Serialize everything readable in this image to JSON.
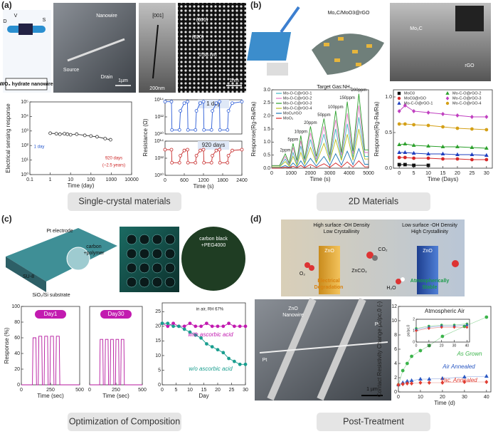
{
  "panels": [
    {
      "label": "(a)",
      "caption": "Single-crystal materials",
      "image_texts": [
        "D",
        "V",
        "S",
        "WO₃ hydrate nanowire",
        "Nanowire",
        "Source",
        "Drain",
        "1µm",
        "[001]",
        "200nm",
        "(001)",
        "(020)",
        "0.38 nm",
        "1nm"
      ]
    },
    {
      "label": "(b)",
      "caption": "2D Materials",
      "image_texts": [
        "Mo₂C/MoO3@rGO",
        "Mo₂C",
        "rGO",
        "Target Gas:NH₃"
      ]
    },
    {
      "label": "(c)",
      "caption": "Optimization of Composition",
      "image_texts": [
        "Pt electrode",
        "carbon",
        "+polymer",
        "SU-8",
        "SiO₂/Si substrate",
        "carbon black",
        "+PEG4000"
      ]
    },
    {
      "label": "(d)",
      "caption": "Post-Treatment",
      "image_texts": [
        "High surface -OH Density",
        "Low Crystallinity",
        "Low surface -OH Density",
        "High Crystallinity",
        "ZnO",
        "ZnO",
        "CO₂",
        "O₂",
        "H₂O",
        "ZnCO₃",
        "Electrical",
        "Degradation",
        "Atmospherically",
        "Stable",
        "ZnO",
        "Nanowire",
        "Pt",
        "Pt",
        "1 µm"
      ]
    }
  ],
  "chart_data": [
    {
      "type": "line",
      "xlog": true,
      "ylog": true,
      "xlabel": "Time (day)",
      "ylabel": "Electrical sensing response",
      "xlim": [
        0.1,
        10000
      ],
      "xticks": [
        0.1,
        1,
        10,
        100,
        1000,
        10000
      ],
      "ylim": [
        1,
        100000
      ],
      "yticks": [
        {
          "value": 1,
          "label": "10⁰"
        },
        {
          "value": 10,
          "label": "10¹"
        },
        {
          "value": 100,
          "label": "10²"
        },
        {
          "value": 1000,
          "label": "10³"
        },
        {
          "value": 10000,
          "label": "10⁴"
        },
        {
          "value": 100000,
          "label": "10⁵"
        }
      ],
      "x": [
        1,
        2,
        3,
        5,
        7,
        10,
        20,
        50,
        100,
        200,
        500,
        920
      ],
      "series": [
        {
          "color": "#333333",
          "marker": "circle",
          "open": true,
          "values": [
            700,
            650,
            600,
            650,
            600,
            550,
            600,
            500,
            450,
            400,
            300,
            250
          ]
        }
      ],
      "notes": [
        {
          "text": "1 day",
          "color": "#2255cc"
        },
        {
          "text": "920 days",
          "color": "#cc2222"
        },
        {
          "text": "(~2.5 years)",
          "color": "#cc2222"
        }
      ]
    },
    {
      "type": "line",
      "ylog": true,
      "ylabel": "Resistance (Ω)",
      "badge": "1 day",
      "xlim": [
        0,
        2400
      ],
      "ylim": [
        10000000000.0,
        100000000000000.0
      ],
      "yticks": [
        {
          "value": 10000000000.0,
          "label": "10¹⁰"
        },
        {
          "value": 1000000000000.0,
          "label": "10¹²"
        },
        {
          "value": 100000000000000.0,
          "label": "10¹⁴"
        }
      ],
      "x": [
        0,
        200,
        215,
        450,
        480,
        600,
        700,
        715,
        950,
        980,
        1100,
        1200,
        1215,
        1450,
        1480,
        1600,
        1700,
        1715,
        1950,
        1980,
        2100,
        2400
      ],
      "series": [
        {
          "color": "#2a5bd7",
          "marker": "circle",
          "open": true,
          "values": [
            60000000000000.0,
            60000000000000.0,
            30000000000.0,
            30000000000.0,
            5000000000000.0,
            40000000000000.0,
            60000000000000.0,
            30000000000.0,
            30000000000.0,
            5000000000000.0,
            40000000000000.0,
            60000000000000.0,
            30000000000.0,
            30000000000.0,
            5000000000000.0,
            40000000000000.0,
            60000000000000.0,
            30000000000.0,
            30000000000.0,
            5000000000000.0,
            40000000000000.0,
            60000000000000.0
          ]
        }
      ]
    },
    {
      "type": "line",
      "ylog": true,
      "xlabel": "Time (s)",
      "badge": "920 days",
      "xlim": [
        0,
        2400
      ],
      "xticks": [
        0,
        600,
        1200,
        1800,
        2400
      ],
      "ylim": [
        10000000000.0,
        100000000000000.0
      ],
      "yticks": [
        {
          "value": 10000000000.0,
          "label": "10¹⁰"
        },
        {
          "value": 1000000000000.0,
          "label": "10¹²"
        },
        {
          "value": 100000000000000.0,
          "label": "10¹⁴"
        }
      ],
      "x": [
        0,
        200,
        215,
        450,
        480,
        600,
        700,
        715,
        950,
        980,
        1100,
        1200,
        1215,
        1450,
        1480,
        1600,
        1700,
        1715,
        1950,
        1980,
        2100,
        2400
      ],
      "series": [
        {
          "color": "#c62828",
          "marker": "circle",
          "open": true,
          "values": [
            10000000000000.0,
            10000000000000.0,
            300000000000.0,
            300000000000.0,
            2000000000000.0,
            8000000000000.0,
            10000000000000.0,
            300000000000.0,
            300000000000.0,
            2000000000000.0,
            8000000000000.0,
            10000000000000.0,
            300000000000.0,
            300000000000.0,
            2000000000000.0,
            8000000000000.0,
            10000000000000.0,
            300000000000.0,
            300000000000.0,
            2000000000000.0,
            8000000000000.0,
            10000000000000.0
          ]
        }
      ]
    },
    {
      "type": "line",
      "xlabel": "Time (s)",
      "ylabel": "Response(Rg-Ra/Ra)",
      "xlim": [
        0,
        5000
      ],
      "xticks": [
        0,
        1000,
        2000,
        3000,
        4000,
        5000
      ],
      "ylim": [
        0,
        3
      ],
      "yticks": [
        {
          "value": 0,
          "label": "0.0"
        },
        0.5,
        {
          "value": 1,
          "label": "1.0"
        },
        1.5,
        {
          "value": 2,
          "label": "2.0"
        },
        2.5,
        {
          "value": 3,
          "label": "3.0"
        }
      ],
      "x": [
        0,
        400,
        700,
        900,
        1100,
        1300,
        1500,
        1700,
        2000,
        2300,
        2700,
        3000,
        3300,
        3600,
        3900,
        4200,
        4500,
        4800,
        5000
      ],
      "series": [
        {
          "name": "Mo-O-C@rGO-1",
          "color": "#41b6c4",
          "values": [
            0.05,
            0.05,
            0.35,
            0.1,
            0.6,
            0.15,
            0.85,
            0.2,
            1.1,
            0.25,
            1.3,
            0.3,
            1.5,
            0.35,
            1.7,
            0.4,
            1.95,
            0.45,
            0.45
          ]
        },
        {
          "name": "Mo-O-C@rGO-2",
          "color": "#e377c2",
          "values": [
            0.1,
            0.1,
            0.45,
            0.15,
            0.8,
            0.25,
            1.05,
            0.3,
            1.35,
            0.35,
            1.6,
            0.4,
            1.85,
            0.5,
            2.1,
            0.55,
            2.4,
            0.6,
            0.6
          ]
        },
        {
          "name": "Mo-O-C@rGO-3",
          "color": "#2ca02c",
          "values": [
            0.1,
            0.1,
            0.55,
            0.2,
            0.95,
            0.3,
            1.25,
            0.35,
            1.6,
            0.45,
            1.9,
            0.5,
            2.2,
            0.6,
            2.55,
            0.65,
            2.85,
            0.7,
            0.7
          ]
        },
        {
          "name": "Mo-O-C@rGO-4",
          "color": "#bcbd22",
          "values": [
            0.05,
            0.05,
            0.25,
            0.08,
            0.45,
            0.1,
            0.6,
            0.15,
            0.8,
            0.2,
            0.95,
            0.25,
            1.1,
            0.3,
            1.3,
            0.3,
            1.5,
            0.35,
            0.35
          ]
        },
        {
          "name": "MoO₃/rGO",
          "color": "#1f77b4",
          "values": [
            0.02,
            0.02,
            0.1,
            0.03,
            0.2,
            0.05,
            0.28,
            0.06,
            0.38,
            0.08,
            0.45,
            0.1,
            0.55,
            0.12,
            0.65,
            0.13,
            0.75,
            0.15,
            0.15
          ]
        },
        {
          "name": "MoO₃",
          "color": "#d62728",
          "values": [
            0,
            0,
            0.04,
            0.01,
            0.07,
            0.02,
            0.1,
            0.02,
            0.14,
            0.03,
            0.17,
            0.03,
            0.2,
            0.04,
            0.24,
            0.04,
            0.28,
            0.05,
            0.05
          ]
        }
      ],
      "notes": [
        {
          "text": "2ppm"
        },
        {
          "text": "5ppm"
        },
        {
          "text": "10ppm"
        },
        {
          "text": "20ppm"
        },
        {
          "text": "50ppm"
        },
        {
          "text": "100ppm"
        },
        {
          "text": "150ppm"
        },
        {
          "text": "200ppm"
        }
      ]
    },
    {
      "type": "line",
      "xlabel": "Time (Days)",
      "ylabel": "Response(Rg-Ra/Ra)",
      "xlim": [
        -2,
        32
      ],
      "xticks": [
        0,
        5,
        10,
        15,
        20,
        25,
        30
      ],
      "ylim": [
        0,
        1.1
      ],
      "yticks": [
        {
          "value": 0,
          "label": "0.0"
        },
        0.5,
        {
          "value": 1,
          "label": "1.0"
        }
      ],
      "x": [
        0,
        2,
        5,
        10,
        15,
        20,
        25,
        30
      ],
      "series": [
        {
          "name": "MoO3",
          "color": "#111111",
          "marker": "square",
          "values": [
            0.05,
            0.05,
            0.04,
            0.04,
            null,
            null,
            null,
            null
          ]
        },
        {
          "name": "MoO3@rGO",
          "color": "#d62728",
          "marker": "circle",
          "values": [
            0.15,
            0.15,
            0.14,
            0.14,
            0.13,
            0.13,
            0.12,
            0.12
          ]
        },
        {
          "name": "Mo-C-O@rGO-1",
          "color": "#1f3fbf",
          "marker": "triangle",
          "values": [
            0.22,
            0.22,
            0.21,
            0.2,
            0.2,
            0.19,
            0.19,
            0.18
          ]
        },
        {
          "name": "Mo-C-O@rGO-2",
          "color": "#2ca02c",
          "marker": "triangle",
          "values": [
            0.33,
            0.34,
            0.32,
            0.31,
            0.3,
            0.3,
            0.29,
            0.28
          ]
        },
        {
          "name": "Mo-C-O@rGO-3",
          "color": "#c040c0",
          "marker": "diamond",
          "values": [
            0.8,
            0.88,
            0.8,
            0.78,
            0.76,
            0.74,
            0.72,
            0.72
          ]
        },
        {
          "name": "Mo-C-O@rGO-4",
          "color": "#d4a017",
          "marker": "circle",
          "values": [
            0.62,
            0.62,
            0.61,
            0.6,
            0.58,
            0.56,
            0.55,
            0.54
          ]
        }
      ]
    },
    {
      "type": "line",
      "xlabel": "Time (sec)",
      "ylabel": "Response (%)",
      "badge": "Day1",
      "xlim": [
        0,
        500
      ],
      "xticks": [
        0,
        250,
        500
      ],
      "ylim": [
        0,
        100
      ],
      "yticks": [
        0,
        20,
        40,
        60,
        80,
        100
      ],
      "x": [
        0,
        95,
        100,
        125,
        130,
        145,
        150,
        175,
        180,
        195,
        200,
        225,
        230,
        245,
        250,
        275,
        280,
        295,
        300,
        325,
        330,
        500
      ],
      "series": [
        {
          "color": "#b5179e",
          "values": [
            0,
            0,
            60,
            60,
            0,
            0,
            62,
            62,
            0,
            0,
            62,
            62,
            0,
            0,
            62,
            62,
            0,
            0,
            62,
            62,
            0,
            0
          ]
        }
      ]
    },
    {
      "type": "line",
      "xlabel": "Time (sec)",
      "badge": "Day30",
      "xlim": [
        0,
        500
      ],
      "xticks": [
        0,
        250,
        500
      ],
      "ylim": [
        0,
        100
      ],
      "x": [
        0,
        95,
        100,
        125,
        130,
        145,
        150,
        175,
        180,
        195,
        200,
        225,
        230,
        245,
        250,
        275,
        280,
        295,
        300,
        325,
        330,
        500
      ],
      "series": [
        {
          "color": "#b5179e",
          "values": [
            0,
            0,
            58,
            58,
            0,
            0,
            58,
            58,
            0,
            0,
            58,
            58,
            0,
            0,
            58,
            58,
            0,
            0,
            58,
            58,
            0,
            0
          ]
        }
      ]
    },
    {
      "type": "line",
      "xlabel": "Day",
      "xlim": [
        0,
        30
      ],
      "xticks": [
        0,
        5,
        10,
        15,
        20,
        25,
        30
      ],
      "ylim": [
        0,
        28
      ],
      "yticks": [
        0,
        5,
        10,
        15,
        20,
        25
      ],
      "x": [
        0,
        2,
        4,
        6,
        8,
        10,
        12,
        14,
        16,
        18,
        20,
        22,
        24,
        26,
        28,
        30
      ],
      "series": [
        {
          "name": "with ascorbic acid",
          "color": "#c21bb0",
          "marker": "circle",
          "values": [
            21,
            20,
            21,
            20,
            20,
            21,
            20,
            20,
            21,
            20,
            20,
            20,
            21,
            20,
            20,
            20
          ]
        },
        {
          "name": "w/o ascorbic acid",
          "color": "#1a9e8f",
          "marker": "circle",
          "values": [
            21,
            21,
            20,
            20,
            19,
            18,
            17,
            16,
            14,
            13,
            12,
            11,
            9,
            8,
            7,
            7
          ]
        }
      ],
      "notes": [
        {
          "text": "in air, RH 67%"
        }
      ]
    },
    {
      "type": "scatter",
      "title": "Atmospheric Air",
      "xlabel": "Time (d)",
      "ylabel": "Contact Resistivity Change ρc/ρc,0 (-)",
      "xlim": [
        0,
        42
      ],
      "xticks": [
        0,
        10,
        20,
        30,
        40
      ],
      "ylim": [
        0,
        12
      ],
      "yticks": [
        0,
        2,
        4,
        6,
        8,
        10,
        12
      ],
      "x": [
        0,
        2,
        4,
        6,
        10,
        14,
        20,
        30,
        40
      ],
      "series": [
        {
          "name": "As Grown",
          "color": "#3cb44b",
          "marker": "circle",
          "values": [
            1,
            3,
            4,
            5,
            5.8,
            6.5,
            7.8,
            9.2,
            10.5
          ]
        },
        {
          "name": "Air Annealed",
          "color": "#2b59c3",
          "marker": "triangle",
          "values": [
            1,
            1.3,
            1.5,
            1.6,
            1.8,
            1.8,
            1.9,
            2.1,
            2.2
          ]
        },
        {
          "name": "Vac. Annealed",
          "color": "#e03c31",
          "marker": "diamond",
          "values": [
            1,
            1.1,
            1.2,
            1.2,
            1.3,
            1.3,
            1.3,
            1.4,
            1.4
          ]
        }
      ]
    },
    {
      "type": "scatter",
      "ylabel": "ρc/ρc,0",
      "xlim": [
        0,
        42
      ],
      "xticks": [
        0,
        10,
        20,
        30,
        40
      ],
      "ylim": [
        0,
        2
      ],
      "yticks": [
        0,
        1,
        2
      ],
      "x": [
        0,
        10,
        20,
        30,
        40
      ],
      "series": [
        {
          "color": "#3cb44b",
          "marker": "circle",
          "values": [
            1.2,
            1.4,
            1.5,
            1.5,
            1.6
          ]
        },
        {
          "color": "#2b59c3",
          "marker": "triangle",
          "values": [
            1.1,
            1.3,
            1.4,
            1.4,
            1.5
          ]
        },
        {
          "color": "#e03c31",
          "marker": "diamond",
          "values": [
            1,
            1.2,
            1.3,
            1.3,
            1.3
          ]
        }
      ]
    }
  ]
}
